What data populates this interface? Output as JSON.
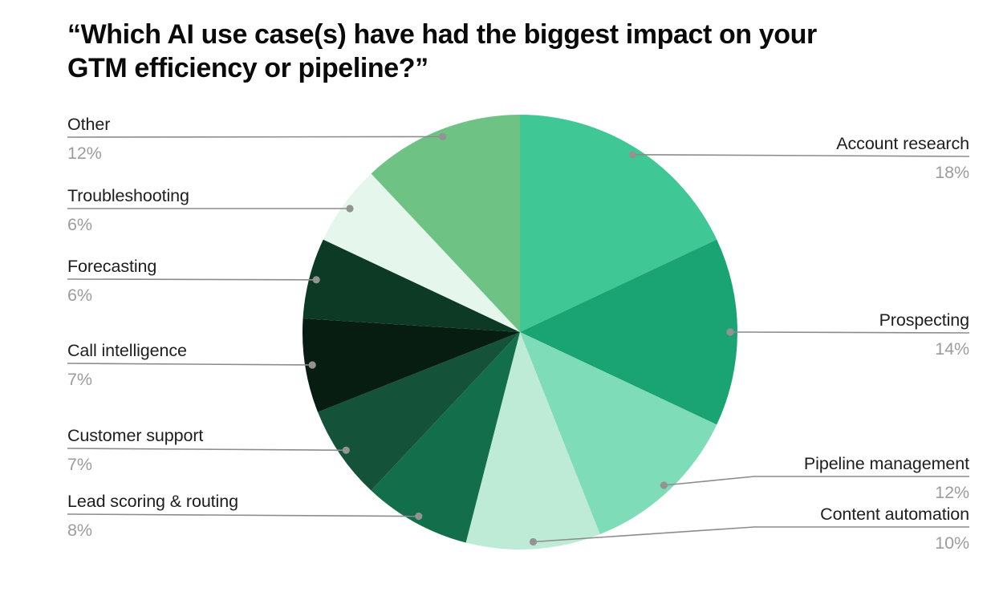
{
  "title": "“Which AI use case(s) have had the biggest impact on your\nGTM efficiency or pipeline?”",
  "chart_data": {
    "type": "pie",
    "title": "“Which AI use case(s) have had the biggest impact on your GTM efficiency or pipeline?”",
    "start_angle_deg": 0,
    "direction": "clockwise",
    "value_suffix": "%",
    "legend_position": "callout-labels",
    "segments": [
      {
        "label": "Account research",
        "value": 18,
        "color": "#3FC795"
      },
      {
        "label": "Prospecting",
        "value": 14,
        "color": "#1BA473"
      },
      {
        "label": "Pipeline management",
        "value": 12,
        "color": "#7EDCB8"
      },
      {
        "label": "Content automation",
        "value": 10,
        "color": "#BDEBD6"
      },
      {
        "label": "Lead scoring & routing",
        "value": 8,
        "color": "#136E4B"
      },
      {
        "label": "Customer support",
        "value": 7,
        "color": "#14533A"
      },
      {
        "label": "Call intelligence",
        "value": 7,
        "color": "#071D12"
      },
      {
        "label": "Forecasting",
        "value": 6,
        "color": "#0C3A24"
      },
      {
        "label": "Troubleshooting",
        "value": 6,
        "color": "#E5F7EC"
      },
      {
        "label": "Other",
        "value": 12,
        "color": "#6EC283"
      }
    ],
    "styles": {
      "background": "#FFFFFF",
      "label_color": "#1E1E1E",
      "pct_color": "#9C9C9C",
      "line_color": "#8C8C8C",
      "dot_color": "#939393",
      "title_color": "#0A0A0A"
    }
  }
}
